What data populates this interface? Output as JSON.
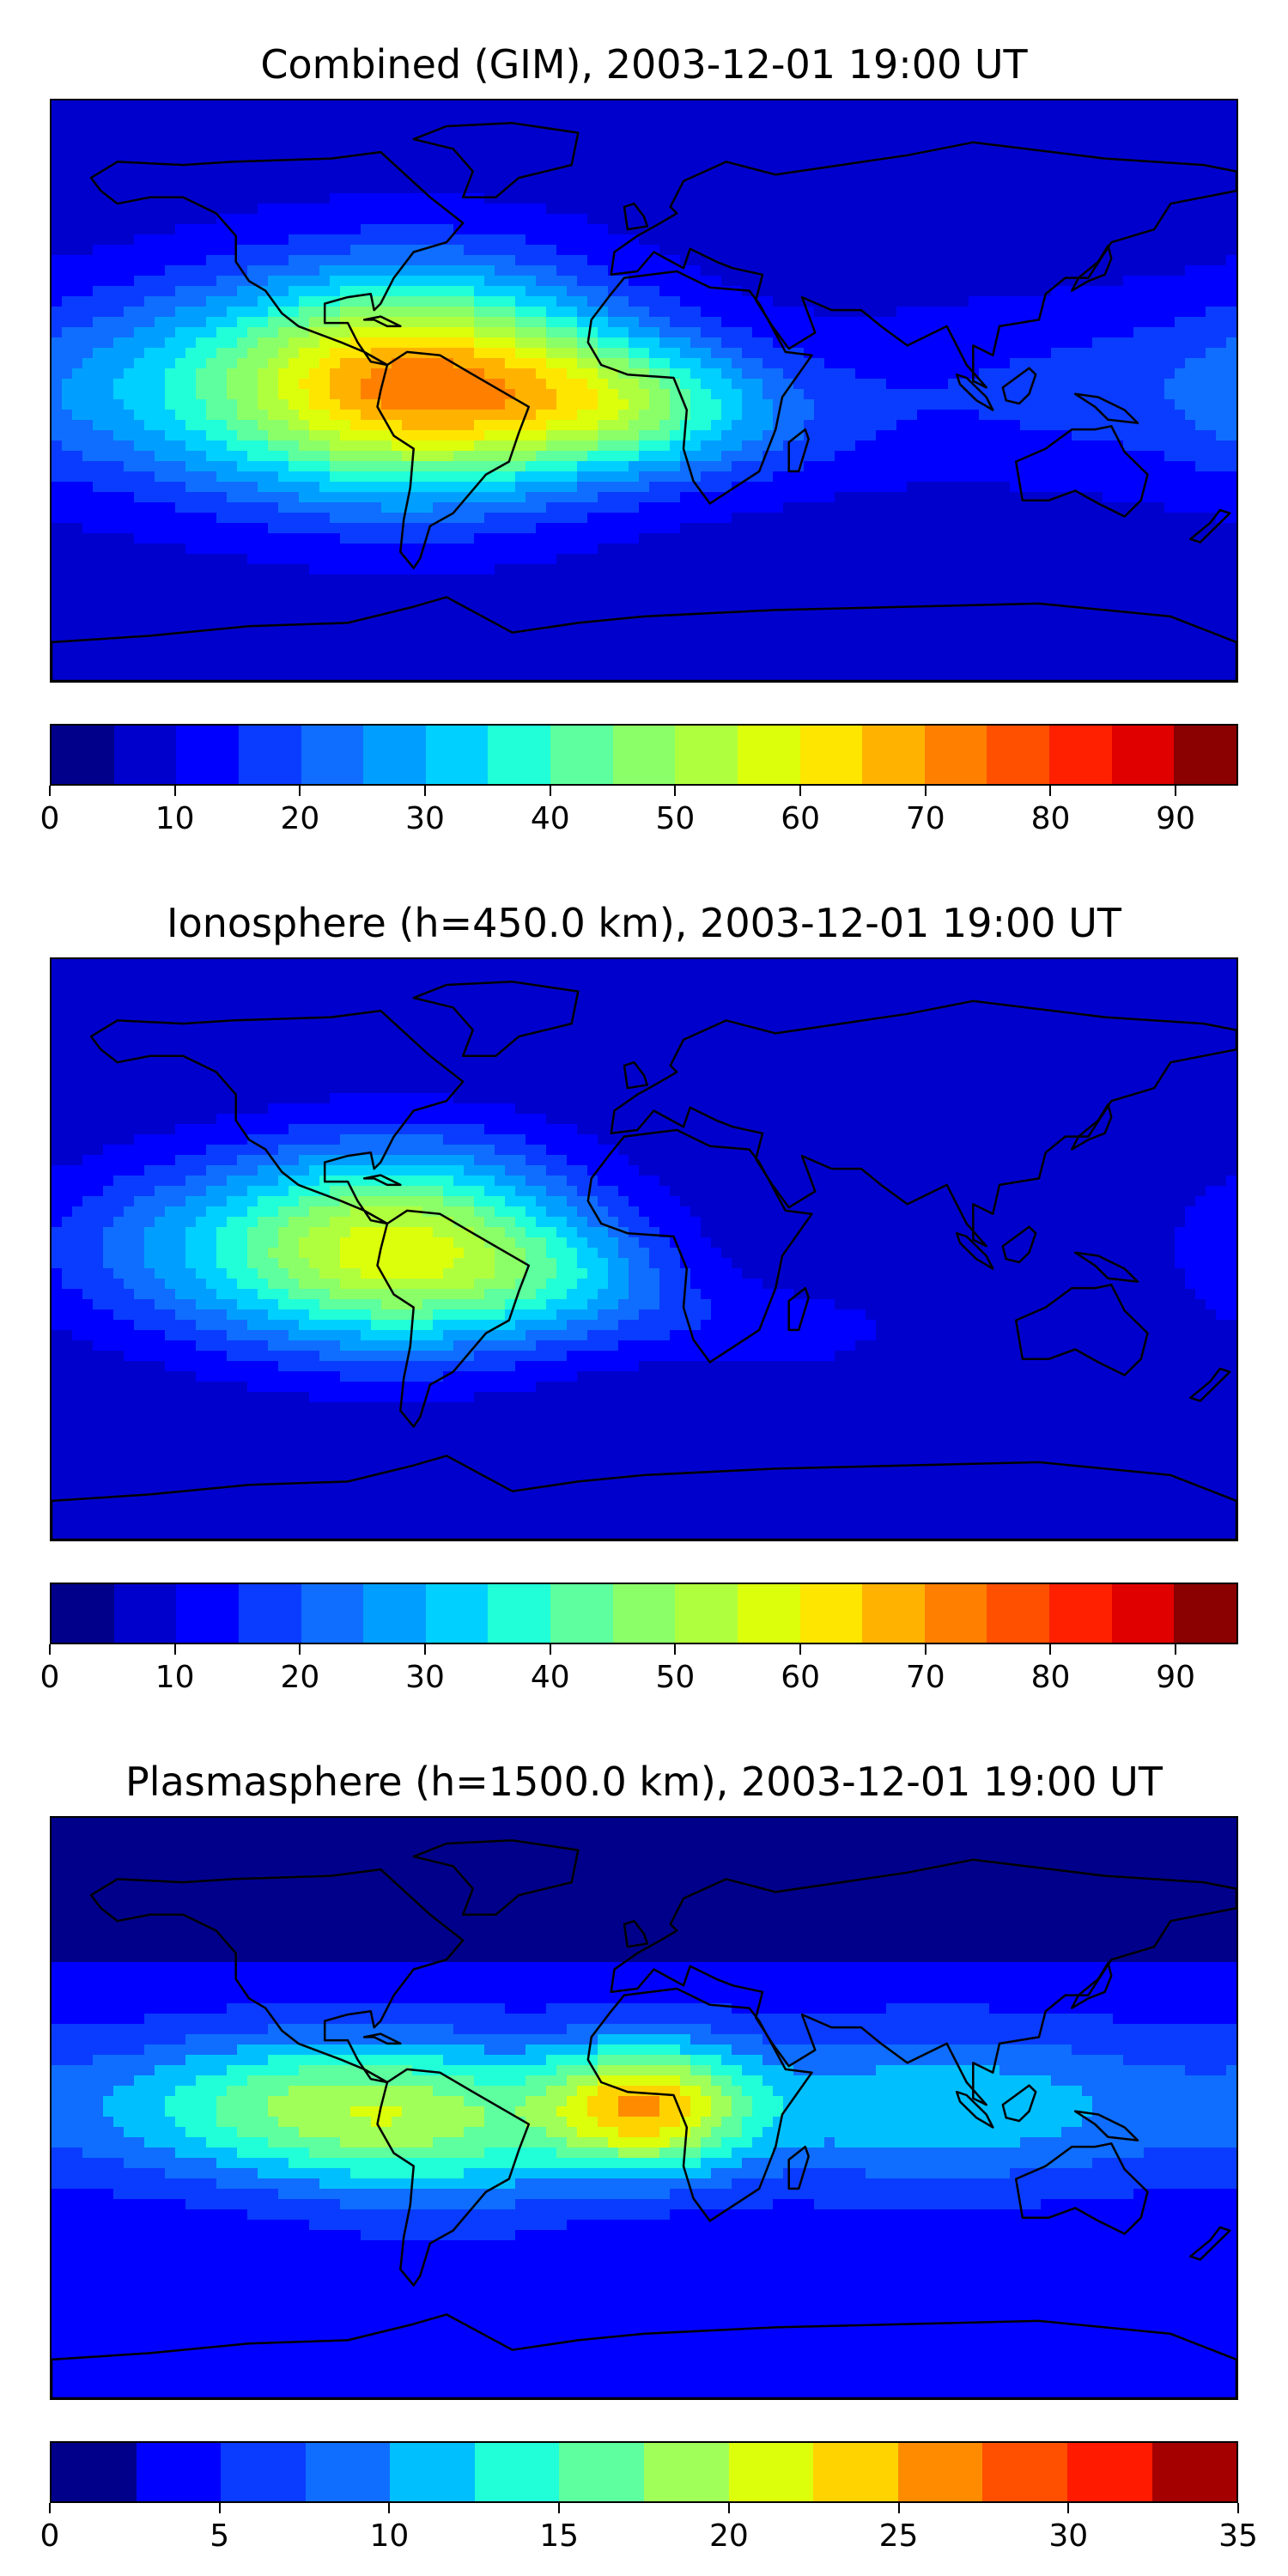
{
  "chart_data": [
    {
      "type": "heatmap",
      "title": "Combined (GIM), 2003-12-01 19:00 UT",
      "colorbar": {
        "range": [
          0,
          95
        ],
        "step": 5,
        "ticks": [
          "0",
          "10",
          "20",
          "30",
          "40",
          "50",
          "60",
          "70",
          "80",
          "90"
        ]
      },
      "peak": {
        "lon_deg": -65,
        "lat_deg": 3,
        "value": 80
      },
      "background_value": 12
    },
    {
      "type": "heatmap",
      "title": "Ionosphere  (h=450.0 km), 2003-12-01 19:00 UT",
      "colorbar": {
        "range": [
          0,
          95
        ],
        "step": 5,
        "ticks": [
          "0",
          "10",
          "20",
          "30",
          "40",
          "50",
          "60",
          "70",
          "80",
          "90"
        ]
      },
      "peak": {
        "lon_deg": -70,
        "lat_deg": 0,
        "value": 63
      },
      "background_value": 8
    },
    {
      "type": "heatmap",
      "title": "Plasmasphere (h=1500.0 km), 2003-12-01 19:00 UT",
      "colorbar": {
        "range": [
          0,
          35
        ],
        "step": 2.5,
        "ticks": [
          "0",
          "5",
          "10",
          "15",
          "20",
          "25",
          "30",
          "35"
        ]
      },
      "peak": {
        "lon_deg": 3,
        "lat_deg": 0,
        "value": 24
      },
      "background_value": 4
    }
  ],
  "palette": [
    "#00008b",
    "#0000cd",
    "#0000ff",
    "#0a3cff",
    "#0f6eff",
    "#009fff",
    "#00d0ff",
    "#20ffd8",
    "#5dff9e",
    "#8bff68",
    "#b0ff3e",
    "#dcff0c",
    "#ffe600",
    "#ffb300",
    "#ff8000",
    "#ff5000",
    "#ff2000",
    "#e00000",
    "#8b0000"
  ],
  "palette14": [
    "#00008b",
    "#0000ff",
    "#0a3cff",
    "#0f6eff",
    "#00bfff",
    "#20ffd8",
    "#5dff9e",
    "#a0ff58",
    "#dcff0c",
    "#ffd300",
    "#ff8c00",
    "#ff5000",
    "#ff1a00",
    "#a50000"
  ]
}
